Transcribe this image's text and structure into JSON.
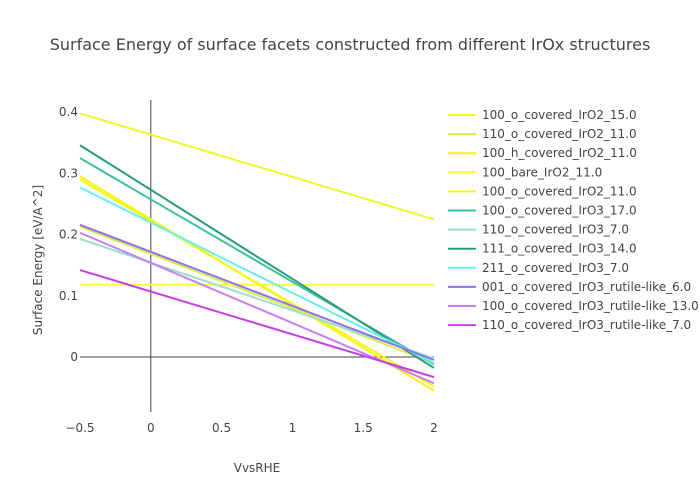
{
  "chart_data": {
    "type": "line",
    "title": "Surface Energy of surface facets constructed from different IrOx structures",
    "xlabel": "VvsRHE",
    "ylabel": "Surface Energy [eV/A^2]",
    "xlim": [
      -0.5,
      2.0
    ],
    "ylim": [
      -0.09,
      0.42
    ],
    "xticks": [
      -0.5,
      0,
      0.5,
      1,
      1.5,
      2
    ],
    "xtick_labels": [
      "−0.5",
      "0",
      "0.5",
      "1",
      "1.5",
      "2"
    ],
    "yticks": [
      0,
      0.1,
      0.2,
      0.3,
      0.4
    ],
    "ytick_labels": [
      "0",
      "0.1",
      "0.2",
      "0.3",
      "0.4"
    ],
    "grid": false,
    "legend_position": "right",
    "series": [
      {
        "name": "100_o_covered_IrO2_15.0",
        "color": "#f1f529",
        "x": [
          -0.5,
          2.0
        ],
        "y": [
          0.398,
          0.225
        ]
      },
      {
        "name": "110_o_covered_IrO2_11.0",
        "color": "#d4ef4a",
        "x": [
          -0.5,
          2.0
        ],
        "y": [
          0.213,
          -0.01
        ]
      },
      {
        "name": "100_h_covered_IrO2_11.0",
        "color": "#f8f314",
        "x": [
          -0.5,
          2.0
        ],
        "y": [
          0.295,
          -0.055
        ]
      },
      {
        "name": "100_bare_IrO2_11.0",
        "color": "#ffff33",
        "x": [
          -0.5,
          2.0
        ],
        "y": [
          0.118,
          0.118
        ]
      },
      {
        "name": "100_o_covered_IrO2_11.0",
        "color": "#f2f719",
        "x": [
          -0.5,
          2.0
        ],
        "y": [
          0.29,
          -0.048
        ]
      },
      {
        "name": "100_o_covered_IrO3_17.0",
        "color": "#3cc0a0",
        "x": [
          -0.5,
          2.0
        ],
        "y": [
          0.325,
          -0.012
        ]
      },
      {
        "name": "110_o_covered_IrO3_7.0",
        "color": "#9ae0cb",
        "x": [
          -0.5,
          2.0
        ],
        "y": [
          0.193,
          -0.002
        ]
      },
      {
        "name": "111_o_covered_IrO3_14.0",
        "color": "#2a9d78",
        "x": [
          -0.5,
          2.0
        ],
        "y": [
          0.346,
          -0.018
        ]
      },
      {
        "name": "211_o_covered_IrO3_7.0",
        "color": "#66eef0",
        "x": [
          -0.5,
          2.0
        ],
        "y": [
          0.277,
          -0.01
        ]
      },
      {
        "name": "001_o_covered_IrO3_rutile-like_6.0",
        "color": "#9370f0",
        "x": [
          -0.5,
          2.0
        ],
        "y": [
          0.216,
          -0.005
        ]
      },
      {
        "name": "100_o_covered_IrO3_rutile-like_13.0",
        "color": "#c77ef0",
        "x": [
          -0.5,
          2.0
        ],
        "y": [
          0.203,
          -0.043
        ]
      },
      {
        "name": "110_o_covered_IrO3_rutile-like_7.0",
        "color": "#c83ee6",
        "x": [
          -0.5,
          2.0
        ],
        "y": [
          0.142,
          -0.033
        ]
      }
    ]
  }
}
